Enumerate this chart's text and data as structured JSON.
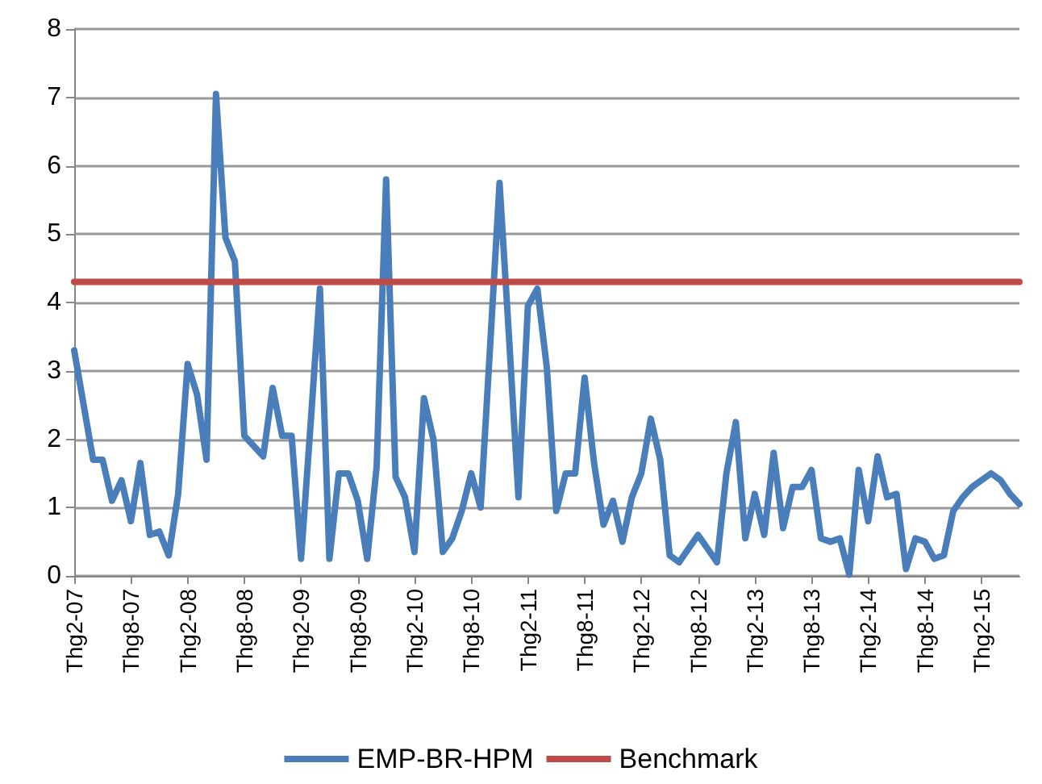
{
  "chart_data": {
    "type": "line",
    "categories": [
      "Thg2-07",
      null,
      null,
      null,
      null,
      null,
      "Thg8-07",
      null,
      null,
      null,
      null,
      null,
      "Thg2-08",
      null,
      null,
      null,
      null,
      null,
      "Thg8-08",
      null,
      null,
      null,
      null,
      null,
      "Thg2-09",
      null,
      null,
      null,
      null,
      null,
      "Thg8-09",
      null,
      null,
      null,
      null,
      null,
      "Thg2-10",
      null,
      null,
      null,
      null,
      null,
      "Thg8-10",
      null,
      null,
      null,
      null,
      null,
      "Thg2-11",
      null,
      null,
      null,
      null,
      null,
      "Thg8-11",
      null,
      null,
      null,
      null,
      null,
      "Thg2-12",
      null,
      null,
      null,
      null,
      null,
      "Thg8-12",
      null,
      null,
      null,
      null,
      null,
      "Thg2-13",
      null,
      null,
      null,
      null,
      null,
      "Thg8-13",
      null,
      null,
      null,
      null,
      null,
      "Thg2-14",
      null,
      null,
      null,
      null,
      null,
      "Thg8-14",
      null,
      null,
      null,
      null,
      null,
      "Thg2-15",
      null,
      null,
      null,
      null
    ],
    "series": [
      {
        "name": "EMP-BR-HPM",
        "color": "#4a7ebb",
        "values": [
          3.3,
          2.5,
          1.7,
          1.7,
          1.1,
          1.4,
          0.8,
          1.65,
          0.6,
          0.65,
          0.3,
          1.2,
          3.1,
          2.65,
          1.7,
          7.05,
          4.95,
          4.6,
          2.05,
          1.9,
          1.75,
          2.75,
          2.05,
          2.05,
          0.25,
          2.2,
          4.2,
          0.25,
          1.5,
          1.5,
          1.1,
          0.25,
          1.6,
          5.8,
          1.45,
          1.15,
          0.35,
          2.6,
          2.0,
          0.35,
          0.55,
          0.95,
          1.5,
          1.0,
          3.35,
          5.75,
          3.5,
          1.15,
          3.95,
          4.2,
          3.05,
          0.95,
          1.5,
          1.5,
          2.9,
          1.65,
          0.75,
          1.1,
          0.5,
          1.15,
          1.5,
          2.3,
          1.7,
          0.3,
          0.2,
          0.4,
          0.6,
          0.4,
          0.2,
          1.5,
          2.25,
          0.55,
          1.2,
          0.6,
          1.8,
          0.7,
          1.3,
          1.3,
          1.55,
          0.55,
          0.5,
          0.55,
          0.02,
          1.55,
          0.8,
          1.75,
          1.15,
          1.2,
          0.1,
          0.55,
          0.5,
          0.25,
          0.3,
          0.95,
          1.15,
          1.3,
          1.4,
          1.5,
          1.4,
          1.2,
          1.05
        ]
      },
      {
        "name": "Benchmark",
        "color": "#be4b48",
        "values": [
          4.3,
          4.3,
          4.3,
          4.3,
          4.3,
          4.3,
          4.3,
          4.3,
          4.3,
          4.3,
          4.3,
          4.3,
          4.3,
          4.3,
          4.3,
          4.3,
          4.3,
          4.3,
          4.3,
          4.3,
          4.3,
          4.3,
          4.3,
          4.3,
          4.3,
          4.3,
          4.3,
          4.3,
          4.3,
          4.3,
          4.3,
          4.3,
          4.3,
          4.3,
          4.3,
          4.3,
          4.3,
          4.3,
          4.3,
          4.3,
          4.3,
          4.3,
          4.3,
          4.3,
          4.3,
          4.3,
          4.3,
          4.3,
          4.3,
          4.3,
          4.3,
          4.3,
          4.3,
          4.3,
          4.3,
          4.3,
          4.3,
          4.3,
          4.3,
          4.3,
          4.3,
          4.3,
          4.3,
          4.3,
          4.3,
          4.3,
          4.3,
          4.3,
          4.3,
          4.3,
          4.3,
          4.3,
          4.3,
          4.3,
          4.3,
          4.3,
          4.3,
          4.3,
          4.3,
          4.3,
          4.3,
          4.3,
          4.3,
          4.3,
          4.3,
          4.3,
          4.3,
          4.3,
          4.3,
          4.3,
          4.3,
          4.3,
          4.3,
          4.3,
          4.3,
          4.3,
          4.3,
          4.3,
          4.3,
          4.3,
          4.3
        ]
      }
    ],
    "ylim": [
      0,
      8
    ],
    "yticks": [
      0,
      1,
      2,
      3,
      4,
      5,
      6,
      7,
      8
    ],
    "grid": "y",
    "legend": "bottom",
    "marker": "none"
  }
}
